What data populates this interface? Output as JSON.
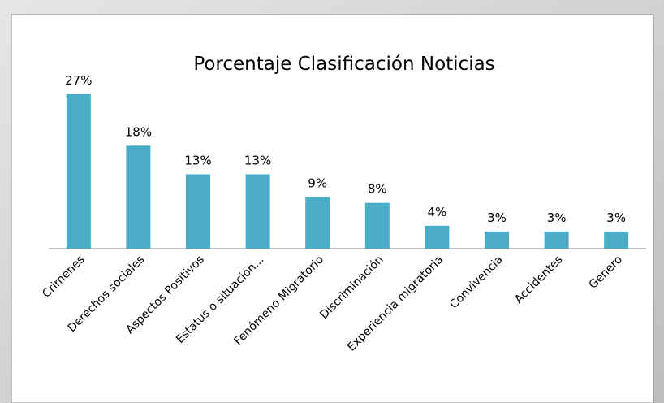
{
  "chart_data": {
    "type": "bar",
    "title": "Porcentaje Clasificación Noticias",
    "categories": [
      "Crimenes",
      "Derechos sociales",
      "Aspectos Positivos",
      "Estatus o situación...",
      "Fenómeno Migratorio",
      "Discriminación",
      "Experiencia migratoria",
      "Convivencia",
      "Accidentes",
      "Género"
    ],
    "values": [
      27,
      18,
      13,
      13,
      9,
      8,
      4,
      3,
      3,
      3
    ],
    "value_labels": [
      "27%",
      "18%",
      "13%",
      "13%",
      "9%",
      "8%",
      "4%",
      "3%",
      "3%",
      "3%"
    ],
    "color": "#4bacc6"
  }
}
